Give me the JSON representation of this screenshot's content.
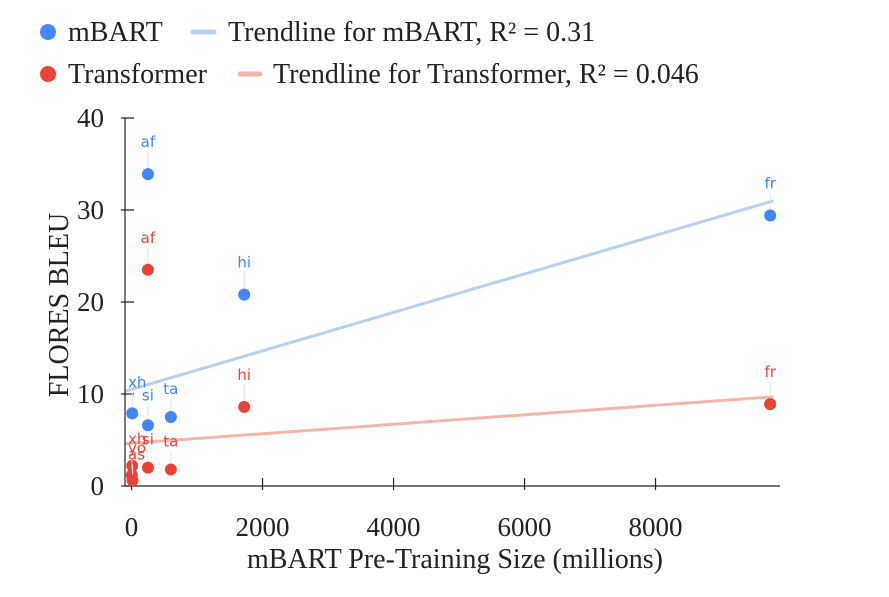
{
  "chart_data": {
    "type": "scatter",
    "xlabel": "mBART Pre-Training Size (millions)",
    "ylabel": "FLORES  BLEU",
    "xlim": [
      -100,
      9900
    ],
    "ylim": [
      0,
      40
    ],
    "xticks": [
      0,
      2000,
      4000,
      6000,
      8000
    ],
    "yticks": [
      0,
      10,
      20,
      30,
      40
    ],
    "grid": false,
    "legend_position": "top",
    "series": [
      {
        "name": "mBART",
        "color": "#4285f4",
        "points": [
          {
            "label": "af",
            "x": 250,
            "y": 33.9
          },
          {
            "label": "fr",
            "x": 9750,
            "y": 29.4
          },
          {
            "label": "hi",
            "x": 1720,
            "y": 20.8
          },
          {
            "label": "xh",
            "x": 10,
            "y": 7.9
          },
          {
            "label": "si",
            "x": 250,
            "y": 6.6
          },
          {
            "label": "ta",
            "x": 600,
            "y": 7.5
          }
        ]
      },
      {
        "name": "Transformer",
        "color": "#ea4335",
        "points": [
          {
            "label": "af",
            "x": 250,
            "y": 23.5
          },
          {
            "label": "fr",
            "x": 9750,
            "y": 8.9
          },
          {
            "label": "hi",
            "x": 1720,
            "y": 8.6
          },
          {
            "label": "xh",
            "x": 10,
            "y": 2.2
          },
          {
            "label": "yo",
            "x": 5,
            "y": 1.2
          },
          {
            "label": "as",
            "x": 15,
            "y": 0.6
          },
          {
            "label": "si",
            "x": 250,
            "y": 2.0
          },
          {
            "label": "ta",
            "x": 600,
            "y": 1.8
          }
        ]
      }
    ],
    "trendlines": [
      {
        "name": "Trendline for mBART, R² = 0.31",
        "color": "#b6d0f2",
        "start": [
          -100,
          10.3
        ],
        "end": [
          9800,
          31.0
        ]
      },
      {
        "name": "Trendline for Transformer, R² = 0.046",
        "color": "#f4b5ad",
        "start": [
          -100,
          4.6
        ],
        "end": [
          9800,
          9.7
        ]
      }
    ]
  }
}
